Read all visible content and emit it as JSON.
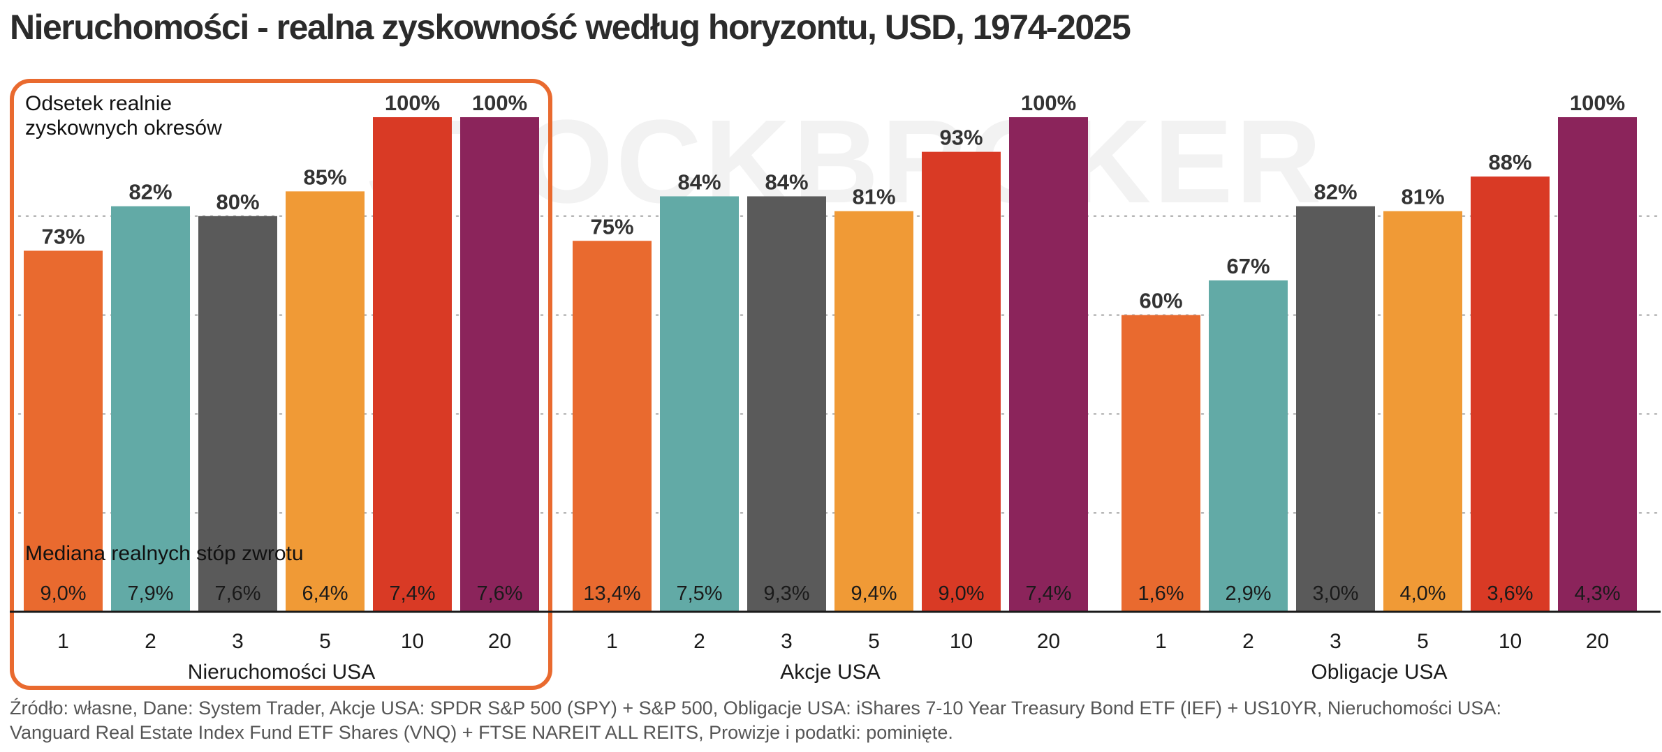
{
  "chart_data": {
    "type": "bar",
    "title": "Nieruchomości - realna zyskowność według horyzontu, USD, 1974-2025",
    "ylabel": "Odsetek realnie zyskownych okresów",
    "ylim": [
      0,
      100
    ],
    "grid": true,
    "median_label": "Mediana realnych stóp zwrotu",
    "horizons": [
      "1",
      "2",
      "3",
      "5",
      "10",
      "20"
    ],
    "groups": [
      {
        "name": "Nieruchomości USA",
        "highlighted": true,
        "values": [
          73,
          82,
          80,
          85,
          100,
          100
        ],
        "value_labels": [
          "73%",
          "82%",
          "80%",
          "85%",
          "100%",
          "100%"
        ],
        "medians": [
          "9,0%",
          "7,9%",
          "7,6%",
          "6,4%",
          "7,4%",
          "7,6%"
        ]
      },
      {
        "name": "Akcje USA",
        "highlighted": false,
        "values": [
          75,
          84,
          84,
          81,
          93,
          100
        ],
        "value_labels": [
          "75%",
          "84%",
          "84%",
          "81%",
          "93%",
          "100%"
        ],
        "medians": [
          "13,4%",
          "7,5%",
          "9,3%",
          "9,4%",
          "9,0%",
          "7,4%"
        ]
      },
      {
        "name": "Obligacje USA",
        "highlighted": false,
        "values": [
          60,
          67,
          82,
          81,
          88,
          100
        ],
        "value_labels": [
          "60%",
          "67%",
          "82%",
          "81%",
          "88%",
          "100%"
        ],
        "medians": [
          "1,6%",
          "2,9%",
          "3,0%",
          "4,0%",
          "3,6%",
          "4,3%"
        ]
      }
    ],
    "colors": [
      "#e96a2f",
      "#62aaa6",
      "#5a5a5a",
      "#f09a36",
      "#d93a25",
      "#8b245b"
    ],
    "highlight_color": "#e96a2f",
    "watermark": "STOCKBROKER"
  },
  "source": {
    "line1": "Źródło: własne, Dane: System Trader, Akcje USA: SPDR S&P 500 (SPY) + S&P 500, Obligacje USA: iShares 7-10 Year Treasury Bond ETF (IEF) + US10YR, Nieruchomości USA:",
    "line2": "Vanguard Real Estate Index Fund ETF Shares (VNQ) + FTSE NAREIT ALL REITS, Prowizje i podatki: pominięte."
  }
}
